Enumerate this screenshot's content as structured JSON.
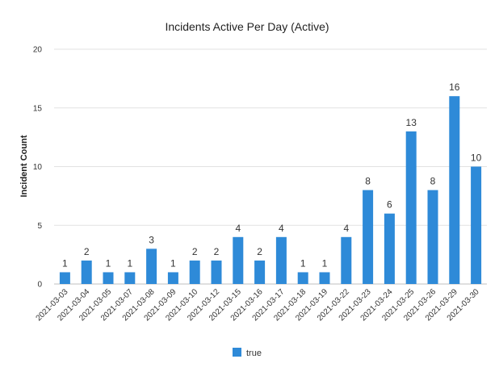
{
  "chart_data": {
    "type": "bar",
    "title": "Incidents Active Per Day (Active)",
    "xlabel": "",
    "ylabel": "Incident Count",
    "ylim": [
      0,
      20
    ],
    "yticks": [
      0,
      5,
      10,
      15,
      20
    ],
    "grid": true,
    "legend_position": "bottom",
    "categories": [
      "2021-03-03",
      "2021-03-04",
      "2021-03-05",
      "2021-03-07",
      "2021-03-08",
      "2021-03-09",
      "2021-03-10",
      "2021-03-12",
      "2021-03-15",
      "2021-03-16",
      "2021-03-17",
      "2021-03-18",
      "2021-03-19",
      "2021-03-22",
      "2021-03-23",
      "2021-03-24",
      "2021-03-25",
      "2021-03-26",
      "2021-03-29",
      "2021-03-30"
    ],
    "series": [
      {
        "name": "true",
        "color": "#2e8ad8",
        "values": [
          1,
          2,
          1,
          1,
          3,
          1,
          2,
          2,
          4,
          2,
          4,
          1,
          1,
          4,
          8,
          6,
          13,
          8,
          16,
          10
        ]
      }
    ]
  }
}
